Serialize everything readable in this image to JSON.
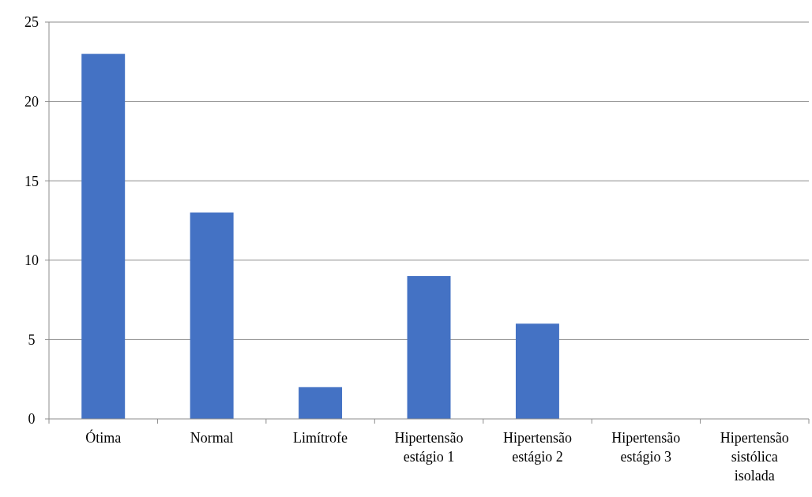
{
  "chart_data": {
    "type": "bar",
    "categories": [
      "Ótima",
      "Normal",
      "Limítrofe",
      "Hipertensão estágio 1",
      "Hipertensão estágio 2",
      "Hipertensão estágio 3",
      "Hipertensão sistólica isolada"
    ],
    "values": [
      23,
      13,
      2,
      9,
      6,
      0,
      0
    ],
    "color": "#4472c4",
    "ylim": [
      0,
      25
    ],
    "yticks": [
      0,
      5,
      10,
      15,
      20,
      25
    ],
    "grid": "y"
  }
}
